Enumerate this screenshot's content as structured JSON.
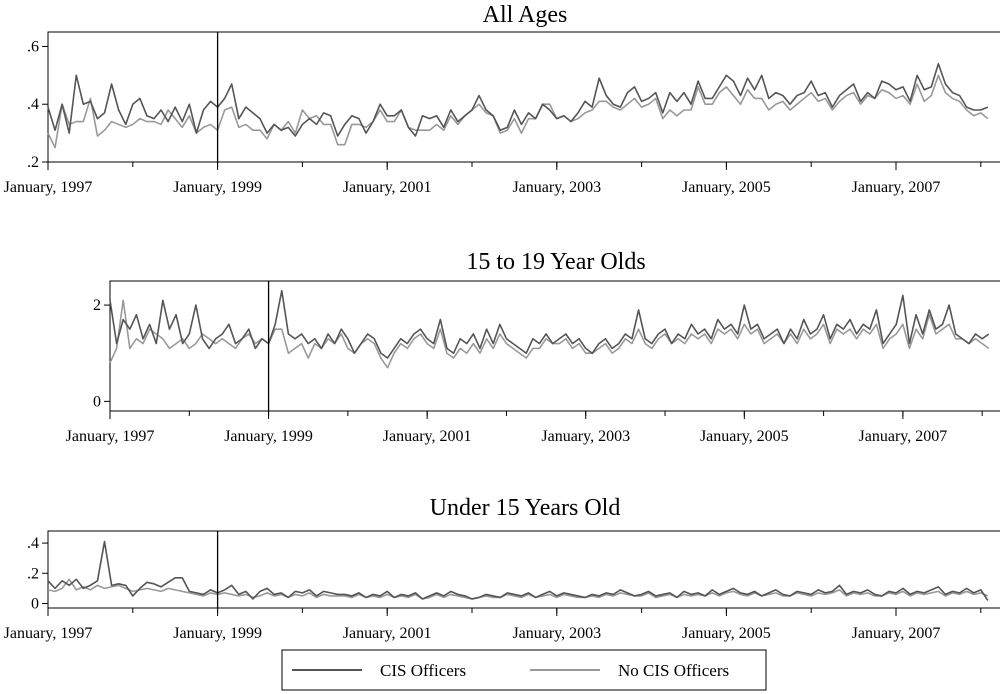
{
  "legend": {
    "position": "bottom",
    "items": [
      {
        "label": "CIS Officers",
        "color": "#555555"
      },
      {
        "label": "No CIS Officers",
        "color": "#999999"
      }
    ]
  },
  "chart_data": [
    {
      "type": "line",
      "title": "All Ages",
      "ylim": [
        0.2,
        0.65
      ],
      "yticks": [
        0.2,
        0.4,
        0.6
      ],
      "ytick_labels": [
        ".2",
        ".4",
        ".6"
      ],
      "xlim": [
        1997.0,
        2008.25
      ],
      "xticks": [
        1997.0,
        1999.0,
        2001.0,
        2003.0,
        2005.0,
        2007.0
      ],
      "xtick_labels": [
        "January, 1997",
        "January, 1999",
        "January, 2001",
        "January, 2003",
        "January, 2005",
        "January, 2007"
      ],
      "vline_x": 1999.0,
      "grid": false,
      "series": [
        {
          "name": "CIS Officers",
          "color": "#555555",
          "x_start": 1997.0,
          "x_step": 0.08333,
          "values": [
            0.39,
            0.31,
            0.4,
            0.3,
            0.5,
            0.4,
            0.41,
            0.35,
            0.37,
            0.47,
            0.38,
            0.33,
            0.4,
            0.42,
            0.36,
            0.35,
            0.38,
            0.34,
            0.39,
            0.34,
            0.4,
            0.3,
            0.38,
            0.41,
            0.39,
            0.42,
            0.47,
            0.35,
            0.39,
            0.37,
            0.35,
            0.3,
            0.33,
            0.31,
            0.32,
            0.29,
            0.33,
            0.35,
            0.33,
            0.37,
            0.36,
            0.29,
            0.33,
            0.36,
            0.35,
            0.3,
            0.34,
            0.4,
            0.36,
            0.36,
            0.38,
            0.32,
            0.29,
            0.36,
            0.35,
            0.36,
            0.32,
            0.38,
            0.34,
            0.36,
            0.38,
            0.43,
            0.38,
            0.36,
            0.31,
            0.32,
            0.38,
            0.33,
            0.37,
            0.35,
            0.4,
            0.38,
            0.35,
            0.36,
            0.34,
            0.37,
            0.41,
            0.39,
            0.49,
            0.43,
            0.4,
            0.39,
            0.44,
            0.46,
            0.41,
            0.42,
            0.44,
            0.37,
            0.44,
            0.41,
            0.44,
            0.4,
            0.48,
            0.42,
            0.42,
            0.46,
            0.5,
            0.48,
            0.43,
            0.49,
            0.45,
            0.5,
            0.42,
            0.44,
            0.43,
            0.4,
            0.43,
            0.44,
            0.48,
            0.43,
            0.44,
            0.39,
            0.43,
            0.45,
            0.47,
            0.41,
            0.44,
            0.42,
            0.48,
            0.47,
            0.45,
            0.46,
            0.41,
            0.5,
            0.45,
            0.46,
            0.54,
            0.47,
            0.44,
            0.43,
            0.39,
            0.38,
            0.38,
            0.39
          ]
        },
        {
          "name": "No CIS Officers",
          "color": "#999999",
          "x_start": 1997.0,
          "x_step": 0.08333,
          "values": [
            0.3,
            0.25,
            0.4,
            0.33,
            0.34,
            0.34,
            0.42,
            0.29,
            0.31,
            0.34,
            0.33,
            0.32,
            0.33,
            0.35,
            0.34,
            0.34,
            0.33,
            0.38,
            0.35,
            0.32,
            0.36,
            0.3,
            0.32,
            0.33,
            0.31,
            0.38,
            0.39,
            0.32,
            0.33,
            0.31,
            0.31,
            0.28,
            0.33,
            0.31,
            0.34,
            0.3,
            0.38,
            0.35,
            0.36,
            0.33,
            0.33,
            0.26,
            0.26,
            0.33,
            0.33,
            0.32,
            0.34,
            0.38,
            0.34,
            0.34,
            0.38,
            0.32,
            0.31,
            0.31,
            0.31,
            0.33,
            0.31,
            0.36,
            0.33,
            0.36,
            0.38,
            0.4,
            0.37,
            0.36,
            0.3,
            0.31,
            0.35,
            0.3,
            0.35,
            0.35,
            0.4,
            0.4,
            0.35,
            0.36,
            0.34,
            0.35,
            0.37,
            0.38,
            0.41,
            0.41,
            0.39,
            0.38,
            0.4,
            0.42,
            0.39,
            0.4,
            0.42,
            0.35,
            0.38,
            0.36,
            0.38,
            0.38,
            0.46,
            0.4,
            0.4,
            0.44,
            0.46,
            0.43,
            0.4,
            0.45,
            0.42,
            0.42,
            0.38,
            0.4,
            0.41,
            0.38,
            0.4,
            0.42,
            0.44,
            0.41,
            0.42,
            0.38,
            0.41,
            0.43,
            0.44,
            0.4,
            0.43,
            0.42,
            0.45,
            0.44,
            0.42,
            0.43,
            0.4,
            0.47,
            0.41,
            0.43,
            0.5,
            0.44,
            0.42,
            0.41,
            0.38,
            0.36,
            0.37,
            0.35
          ]
        }
      ]
    },
    {
      "type": "line",
      "title": "15 to 19 Year Olds",
      "ylim": [
        -0.2,
        2.5
      ],
      "yticks": [
        0,
        2
      ],
      "ytick_labels": [
        "0",
        "2"
      ],
      "xlim": [
        1997.0,
        2008.25
      ],
      "xticks": [
        1997.0,
        1999.0,
        2001.0,
        2003.0,
        2005.0,
        2007.0
      ],
      "xtick_labels": [
        "January, 1997",
        "January, 1999",
        "January, 2001",
        "January, 2003",
        "January, 2005",
        "January, 2007"
      ],
      "vline_x": 1999.0,
      "grid": false,
      "series": [
        {
          "name": "CIS Officers",
          "color": "#555555",
          "x_start": 1997.0,
          "x_step": 0.08333,
          "values": [
            2.1,
            1.2,
            1.7,
            1.5,
            1.8,
            1.3,
            1.6,
            1.2,
            2.1,
            1.5,
            1.8,
            1.2,
            1.4,
            2.0,
            1.3,
            1.1,
            1.3,
            1.4,
            1.6,
            1.2,
            1.3,
            1.5,
            1.1,
            1.3,
            1.2,
            1.6,
            2.3,
            1.4,
            1.3,
            1.4,
            1.2,
            1.3,
            1.1,
            1.4,
            1.2,
            1.5,
            1.3,
            1.0,
            1.2,
            1.4,
            1.3,
            1.0,
            0.9,
            1.1,
            1.3,
            1.2,
            1.4,
            1.5,
            1.3,
            1.2,
            1.7,
            1.1,
            1.0,
            1.3,
            1.2,
            1.4,
            1.1,
            1.5,
            1.2,
            1.6,
            1.3,
            1.2,
            1.1,
            1.0,
            1.3,
            1.2,
            1.4,
            1.2,
            1.3,
            1.4,
            1.2,
            1.3,
            1.1,
            1.0,
            1.2,
            1.3,
            1.1,
            1.2,
            1.4,
            1.3,
            1.9,
            1.3,
            1.2,
            1.4,
            1.5,
            1.2,
            1.4,
            1.3,
            1.6,
            1.4,
            1.5,
            1.3,
            1.7,
            1.5,
            1.6,
            1.4,
            2.0,
            1.5,
            1.6,
            1.3,
            1.4,
            1.5,
            1.2,
            1.5,
            1.3,
            1.7,
            1.4,
            1.5,
            1.8,
            1.3,
            1.6,
            1.5,
            1.7,
            1.4,
            1.6,
            1.5,
            1.9,
            1.2,
            1.4,
            1.6,
            2.2,
            1.2,
            1.8,
            1.4,
            1.9,
            1.5,
            1.6,
            2.0,
            1.4,
            1.3,
            1.2,
            1.4,
            1.3,
            1.4
          ]
        },
        {
          "name": "No CIS Officers",
          "color": "#999999",
          "x_start": 1997.0,
          "x_step": 0.08333,
          "values": [
            0.8,
            1.1,
            2.1,
            1.1,
            1.3,
            1.2,
            1.5,
            1.4,
            1.3,
            1.1,
            1.2,
            1.3,
            1.1,
            1.2,
            1.4,
            1.3,
            1.2,
            1.3,
            1.2,
            1.1,
            1.3,
            1.4,
            1.2,
            1.3,
            1.2,
            1.5,
            1.5,
            1.0,
            1.1,
            1.2,
            0.9,
            1.2,
            1.1,
            1.3,
            1.2,
            1.4,
            1.1,
            1.0,
            1.2,
            1.3,
            1.2,
            0.9,
            0.7,
            1.0,
            1.2,
            1.1,
            1.3,
            1.4,
            1.2,
            1.1,
            1.5,
            1.0,
            0.9,
            1.1,
            1.0,
            1.2,
            1.0,
            1.3,
            1.1,
            1.4,
            1.2,
            1.1,
            1.0,
            0.9,
            1.1,
            1.1,
            1.3,
            1.2,
            1.2,
            1.3,
            1.1,
            1.2,
            1.0,
            1.0,
            1.1,
            1.2,
            1.0,
            1.1,
            1.3,
            1.2,
            1.5,
            1.2,
            1.1,
            1.3,
            1.4,
            1.2,
            1.3,
            1.2,
            1.4,
            1.3,
            1.4,
            1.2,
            1.5,
            1.4,
            1.5,
            1.3,
            1.6,
            1.4,
            1.5,
            1.2,
            1.3,
            1.4,
            1.2,
            1.4,
            1.2,
            1.5,
            1.3,
            1.4,
            1.6,
            1.2,
            1.5,
            1.4,
            1.5,
            1.3,
            1.5,
            1.4,
            1.6,
            1.1,
            1.3,
            1.4,
            1.6,
            1.1,
            1.5,
            1.3,
            1.8,
            1.4,
            1.5,
            1.6,
            1.3,
            1.3,
            1.2,
            1.3,
            1.2,
            1.1
          ]
        }
      ]
    },
    {
      "type": "line",
      "title": "Under 15 Years Old",
      "ylim": [
        -0.03,
        0.48
      ],
      "yticks": [
        0,
        0.2,
        0.4
      ],
      "ytick_labels": [
        "0",
        ".2",
        ".4"
      ],
      "xlim": [
        1997.0,
        2008.25
      ],
      "xticks": [
        1997.0,
        1999.0,
        2001.0,
        2003.0,
        2005.0,
        2007.0
      ],
      "xtick_labels": [
        "January, 1997",
        "January, 1999",
        "January, 2001",
        "January, 2003",
        "January, 2005",
        "January, 2007"
      ],
      "vline_x": 1999.0,
      "grid": false,
      "series": [
        {
          "name": "CIS Officers",
          "color": "#555555",
          "x_start": 1997.0,
          "x_step": 0.08333,
          "values": [
            0.15,
            0.1,
            0.15,
            0.12,
            0.16,
            0.1,
            0.12,
            0.15,
            0.41,
            0.12,
            0.13,
            0.12,
            0.05,
            0.1,
            0.14,
            0.13,
            0.11,
            0.14,
            0.17,
            0.17,
            0.08,
            0.07,
            0.06,
            0.09,
            0.07,
            0.09,
            0.12,
            0.06,
            0.08,
            0.03,
            0.08,
            0.1,
            0.06,
            0.07,
            0.04,
            0.08,
            0.07,
            0.09,
            0.05,
            0.08,
            0.07,
            0.06,
            0.06,
            0.05,
            0.07,
            0.04,
            0.06,
            0.05,
            0.08,
            0.04,
            0.06,
            0.05,
            0.07,
            0.03,
            0.05,
            0.07,
            0.05,
            0.08,
            0.06,
            0.05,
            0.03,
            0.04,
            0.06,
            0.05,
            0.04,
            0.07,
            0.06,
            0.05,
            0.07,
            0.04,
            0.06,
            0.08,
            0.05,
            0.07,
            0.06,
            0.05,
            0.04,
            0.06,
            0.05,
            0.07,
            0.06,
            0.09,
            0.07,
            0.05,
            0.06,
            0.08,
            0.05,
            0.06,
            0.07,
            0.04,
            0.08,
            0.06,
            0.07,
            0.05,
            0.09,
            0.06,
            0.08,
            0.1,
            0.07,
            0.06,
            0.08,
            0.05,
            0.07,
            0.09,
            0.06,
            0.05,
            0.08,
            0.07,
            0.06,
            0.09,
            0.07,
            0.08,
            0.12,
            0.06,
            0.08,
            0.07,
            0.09,
            0.06,
            0.05,
            0.08,
            0.07,
            0.1,
            0.06,
            0.08,
            0.07,
            0.09,
            0.11,
            0.06,
            0.08,
            0.07,
            0.1,
            0.07,
            0.09,
            0.02
          ]
        },
        {
          "name": "No CIS Officers",
          "color": "#999999",
          "x_start": 1997.0,
          "x_step": 0.08333,
          "values": [
            0.09,
            0.08,
            0.1,
            0.16,
            0.09,
            0.11,
            0.09,
            0.12,
            0.1,
            0.11,
            0.12,
            0.1,
            0.08,
            0.09,
            0.1,
            0.09,
            0.08,
            0.1,
            0.09,
            0.08,
            0.07,
            0.06,
            0.05,
            0.07,
            0.06,
            0.07,
            0.06,
            0.05,
            0.06,
            0.04,
            0.05,
            0.07,
            0.05,
            0.06,
            0.04,
            0.06,
            0.05,
            0.07,
            0.04,
            0.06,
            0.05,
            0.05,
            0.05,
            0.04,
            0.06,
            0.04,
            0.05,
            0.04,
            0.06,
            0.04,
            0.05,
            0.04,
            0.06,
            0.03,
            0.04,
            0.06,
            0.04,
            0.06,
            0.05,
            0.04,
            0.03,
            0.04,
            0.05,
            0.04,
            0.04,
            0.06,
            0.05,
            0.04,
            0.06,
            0.04,
            0.05,
            0.06,
            0.04,
            0.06,
            0.05,
            0.04,
            0.04,
            0.05,
            0.04,
            0.06,
            0.05,
            0.07,
            0.06,
            0.05,
            0.05,
            0.07,
            0.04,
            0.05,
            0.06,
            0.04,
            0.06,
            0.05,
            0.06,
            0.05,
            0.07,
            0.05,
            0.07,
            0.08,
            0.06,
            0.05,
            0.07,
            0.05,
            0.06,
            0.07,
            0.05,
            0.05,
            0.07,
            0.06,
            0.05,
            0.07,
            0.06,
            0.07,
            0.09,
            0.05,
            0.07,
            0.06,
            0.07,
            0.05,
            0.05,
            0.07,
            0.06,
            0.08,
            0.05,
            0.07,
            0.06,
            0.07,
            0.08,
            0.05,
            0.07,
            0.06,
            0.08,
            0.06,
            0.07,
            0.05
          ]
        }
      ]
    }
  ]
}
